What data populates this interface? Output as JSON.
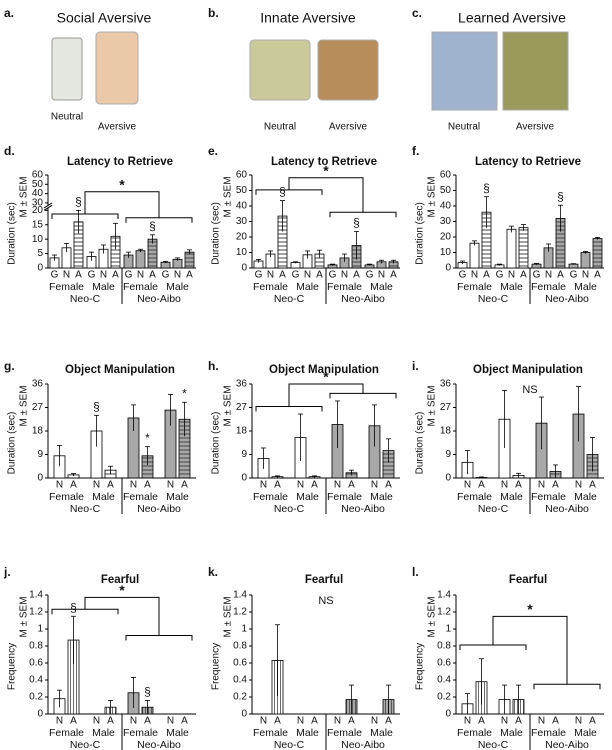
{
  "stimuli": [
    {
      "label": "a.",
      "title": "Social Aversive",
      "items": [
        "Neutral",
        "Aversive"
      ]
    },
    {
      "label": "b.",
      "title": "Innate Aversive",
      "items": [
        "Neutral",
        "Aversive"
      ]
    },
    {
      "label": "c.",
      "title": "Learned Aversive",
      "items": [
        "Neutral",
        "Aversive"
      ]
    }
  ],
  "chart_data": [
    {
      "type": "bar",
      "panel": "d.",
      "title": "Latency to Retrieve",
      "ylabel": [
        "Duration (sec)",
        "M ± SEM"
      ],
      "categories": [
        "G",
        "N",
        "A",
        "G",
        "N",
        "A",
        "G",
        "N",
        "A",
        "G",
        "N",
        "A"
      ],
      "sex_labels": [
        "Female",
        "Male",
        "Female",
        "Male"
      ],
      "group_labels": [
        "Neo-C",
        "Neo-Aibo"
      ],
      "values": [
        3.5,
        7,
        16,
        4,
        6.5,
        11,
        4.5,
        6,
        10,
        2,
        3,
        5.5
      ],
      "errors": [
        1,
        1.5,
        4,
        1.5,
        1.5,
        4.5,
        1,
        0.5,
        1.5,
        0.3,
        0.5,
        0.8
      ],
      "styles": [
        "open",
        "open",
        "open-hatched",
        "open",
        "open",
        "open-hatched",
        "gray",
        "gray",
        "gray-hatched",
        "gray",
        "gray",
        "gray-hatched"
      ],
      "value_annotations": [
        null,
        null,
        "§",
        null,
        null,
        null,
        null,
        null,
        "§",
        null,
        null,
        null
      ],
      "ylim": [
        0,
        60
      ],
      "ybreak": [
        20,
        30
      ],
      "yticks": [
        0,
        5,
        10,
        15,
        20,
        30,
        40,
        50,
        60
      ],
      "comparison": "*",
      "hatch": "horizontal"
    },
    {
      "type": "bar",
      "panel": "e.",
      "title": "Latency to Retrieve",
      "ylabel": [
        "Duration (sec)",
        "M ± SEM"
      ],
      "categories": [
        "G",
        "N",
        "A",
        "G",
        "N",
        "A",
        "G",
        "N",
        "A",
        "G",
        "N",
        "A"
      ],
      "sex_labels": [
        "Female",
        "Male",
        "Female",
        "Male"
      ],
      "group_labels": [
        "Neo-C",
        "Neo-Aibo"
      ],
      "values": [
        4.5,
        9,
        33.5,
        3.5,
        8.5,
        9,
        2,
        6.5,
        14.5,
        2,
        4,
        4
      ],
      "errors": [
        1,
        2,
        10,
        0.5,
        2.5,
        2.5,
        0.5,
        2.5,
        9,
        0.5,
        1,
        1
      ],
      "styles": [
        "open",
        "open",
        "open-hatched",
        "open",
        "open",
        "open-hatched",
        "gray",
        "gray",
        "gray-hatched",
        "gray",
        "gray",
        "gray-hatched"
      ],
      "value_annotations": [
        null,
        null,
        "§",
        null,
        null,
        null,
        null,
        null,
        "§",
        null,
        null,
        null
      ],
      "ylim": [
        0,
        60
      ],
      "yticks": [
        0,
        10,
        20,
        30,
        40,
        50,
        60
      ],
      "comparison": "*",
      "hatch": "horizontal"
    },
    {
      "type": "bar",
      "panel": "f.",
      "title": "Latency to Retrieve",
      "ylabel": [
        "Duration (sec)",
        "M ± SEM"
      ],
      "categories": [
        "G",
        "N",
        "A",
        "G",
        "N",
        "A",
        "G",
        "N",
        "A",
        "G",
        "N",
        "A"
      ],
      "sex_labels": [
        "Female",
        "Male",
        "Female",
        "Male"
      ],
      "group_labels": [
        "Neo-C",
        "Neo-Aibo"
      ],
      "values": [
        3.5,
        16,
        36,
        2,
        25,
        26,
        2.5,
        13,
        32,
        2.5,
        10,
        19
      ],
      "errors": [
        1,
        1.5,
        10,
        0.5,
        2,
        2,
        0.5,
        2.5,
        8.5,
        0.3,
        0.7,
        0.7
      ],
      "styles": [
        "open",
        "open",
        "open-hatched",
        "open",
        "open",
        "open-hatched",
        "gray",
        "gray",
        "gray-hatched",
        "gray",
        "gray",
        "gray-hatched"
      ],
      "value_annotations": [
        null,
        null,
        "§",
        null,
        null,
        null,
        null,
        null,
        "§",
        null,
        null,
        null
      ],
      "ylim": [
        0,
        60
      ],
      "yticks": [
        0,
        10,
        20,
        30,
        40,
        50,
        60
      ],
      "hatch": "horizontal"
    },
    {
      "type": "bar",
      "panel": "g.",
      "title": "Object Manipulation",
      "ylabel": [
        "Duration (sec)",
        "M ± SEM"
      ],
      "categories": [
        "N",
        "A",
        "N",
        "A",
        "N",
        "A",
        "N",
        "A"
      ],
      "sex_labels": [
        "Female",
        "Male",
        "Female",
        "Male"
      ],
      "group_labels": [
        "Neo-C",
        "Neo-Aibo"
      ],
      "values": [
        8.5,
        1.2,
        18,
        3,
        23,
        8.5,
        26,
        22.5
      ],
      "errors": [
        4,
        0.5,
        6,
        1.5,
        5,
        3.5,
        6,
        6.5
      ],
      "styles": [
        "open",
        "open-hatched",
        "open",
        "open-hatched",
        "gray",
        "gray-hatched",
        "gray",
        "gray-hatched"
      ],
      "value_annotations": [
        null,
        null,
        "§",
        null,
        null,
        "*",
        null,
        "*"
      ],
      "ylim": [
        0,
        36
      ],
      "yticks": [
        0,
        9,
        18,
        27,
        36
      ],
      "hatch": "horizontal"
    },
    {
      "type": "bar",
      "panel": "h.",
      "title": "Object Manipulation",
      "ylabel": [
        "Duration (sec)",
        "M ± SEM"
      ],
      "categories": [
        "N",
        "A",
        "N",
        "A",
        "N",
        "A",
        "N",
        "A"
      ],
      "sex_labels": [
        "Female",
        "Male",
        "Female",
        "Male"
      ],
      "group_labels": [
        "Neo-C",
        "Neo-Aibo"
      ],
      "values": [
        7.5,
        0.5,
        15.5,
        0.5,
        20.5,
        2,
        20,
        10.5
      ],
      "errors": [
        4,
        0.3,
        9,
        0.3,
        9,
        1,
        8,
        4.5
      ],
      "styles": [
        "open",
        "open-hatched",
        "open",
        "open-hatched",
        "gray",
        "gray-hatched",
        "gray",
        "gray-hatched"
      ],
      "value_annotations": [
        null,
        null,
        null,
        null,
        null,
        null,
        null,
        null
      ],
      "ylim": [
        0,
        36
      ],
      "yticks": [
        0,
        9,
        18,
        27,
        36
      ],
      "comparison": "*",
      "hatch": "horizontal"
    },
    {
      "type": "bar",
      "panel": "i.",
      "title": "Object Manipulation",
      "ylabel": [
        "Duration (sec)",
        "M ± SEM"
      ],
      "categories": [
        "N",
        "A",
        "N",
        "A",
        "N",
        "A",
        "N",
        "A"
      ],
      "sex_labels": [
        "Female",
        "Male",
        "Female",
        "Male"
      ],
      "group_labels": [
        "Neo-C",
        "Neo-Aibo"
      ],
      "values": [
        6,
        0.2,
        22.5,
        1,
        21,
        2.5,
        24.5,
        9
      ],
      "errors": [
        4.5,
        0.2,
        11,
        0.8,
        10,
        2.5,
        10.5,
        6.5
      ],
      "styles": [
        "open",
        "open-hatched",
        "open",
        "open-hatched",
        "gray",
        "gray-hatched",
        "gray",
        "gray-hatched"
      ],
      "value_annotations": [
        null,
        null,
        null,
        null,
        null,
        null,
        null,
        null
      ],
      "ylim": [
        0,
        36
      ],
      "yticks": [
        0,
        9,
        18,
        27,
        36
      ],
      "comparison": "NS",
      "hatch": "horizontal"
    },
    {
      "type": "bar",
      "panel": "j.",
      "title": "Fearful",
      "ylabel": [
        "Frequency",
        "M ± SEM"
      ],
      "categories": [
        "N",
        "A",
        "N",
        "A",
        "N",
        "A",
        "N",
        "A"
      ],
      "sex_labels": [
        "Female",
        "Male",
        "Female",
        "Male"
      ],
      "group_labels": [
        "Neo-C",
        "Neo-Aibo"
      ],
      "values": [
        0.18,
        0.87,
        0,
        0.08,
        0.25,
        0.08,
        0,
        0
      ],
      "errors": [
        0.1,
        0.28,
        0,
        0.08,
        0.18,
        0.08,
        0,
        0
      ],
      "styles": [
        "open",
        "open-hatched",
        "open",
        "open-hatched",
        "gray",
        "gray-hatched",
        "gray",
        "gray-hatched"
      ],
      "value_annotations": [
        null,
        "§",
        null,
        null,
        null,
        "§",
        null,
        null
      ],
      "ylim": [
        0,
        1.4
      ],
      "yticks": [
        0,
        0.2,
        0.4,
        0.6,
        0.8,
        1,
        1.2,
        1.4
      ],
      "comparison": "*",
      "hatch": "vertical"
    },
    {
      "type": "bar",
      "panel": "k.",
      "title": "Fearful",
      "ylabel": [
        "Frequency",
        "M ± SEM"
      ],
      "categories": [
        "N",
        "A",
        "N",
        "A",
        "N",
        "A",
        "N",
        "A"
      ],
      "sex_labels": [
        "Female",
        "Male",
        "Female",
        "Male"
      ],
      "group_labels": [
        "Neo-C",
        "Neo-Aibo"
      ],
      "values": [
        0,
        0.63,
        0,
        0,
        0,
        0.17,
        0,
        0.17
      ],
      "errors": [
        0,
        0.42,
        0,
        0,
        0,
        0.17,
        0,
        0.17
      ],
      "styles": [
        "open",
        "open-hatched",
        "open",
        "open-hatched",
        "gray",
        "gray-hatched",
        "gray",
        "gray-hatched"
      ],
      "value_annotations": [
        null,
        null,
        null,
        null,
        null,
        null,
        null,
        null
      ],
      "ylim": [
        0,
        1.4
      ],
      "yticks": [
        0,
        0.2,
        0.4,
        0.6,
        0.8,
        1,
        1.2,
        1.4
      ],
      "comparison": "NS",
      "hatch": "vertical"
    },
    {
      "type": "bar",
      "panel": "l.",
      "title": "Fearful",
      "ylabel": [
        "Frequency",
        "M ± SEM"
      ],
      "categories": [
        "N",
        "A",
        "N",
        "A",
        "N",
        "A",
        "N",
        "A"
      ],
      "sex_labels": [
        "Female",
        "Male",
        "Female",
        "Male"
      ],
      "group_labels": [
        "Neo-C",
        "Neo-Aibo"
      ],
      "values": [
        0.12,
        0.38,
        0.17,
        0.17,
        0,
        0,
        0,
        0
      ],
      "errors": [
        0.12,
        0.27,
        0.17,
        0.17,
        0,
        0,
        0,
        0
      ],
      "styles": [
        "open",
        "open-hatched",
        "open",
        "open-hatched",
        "gray",
        "gray-hatched",
        "gray",
        "gray-hatched"
      ],
      "value_annotations": [
        null,
        null,
        null,
        null,
        null,
        null,
        null,
        null
      ],
      "ylim": [
        0,
        1.4
      ],
      "yticks": [
        0,
        0.2,
        0.4,
        0.6,
        0.8,
        1,
        1.2,
        1.4
      ],
      "comparison": "*",
      "hatch": "vertical"
    }
  ]
}
